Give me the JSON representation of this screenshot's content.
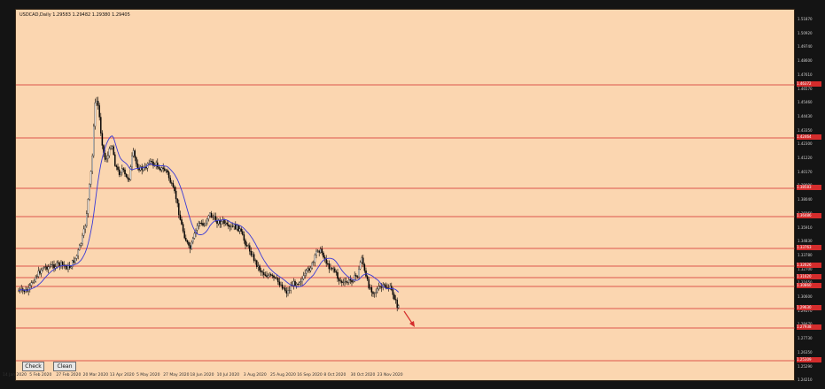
{
  "chart": {
    "title": "USDCAD,Daily  1.29583 1.29482 1.29380 1.29405",
    "buttons": {
      "check": "Check",
      "clean": "Clean"
    }
  },
  "colors": {
    "background": "#fbd6b0",
    "candles": "#000000",
    "ma": "#3a3ad6",
    "levels": "#d42c2c",
    "arrow": "#d42c2c"
  },
  "y_axis": {
    "ticks": [
      "1.51870",
      "1.50920",
      "1.49740",
      "1.48600",
      "1.47610",
      "1.46570",
      "1.45460",
      "1.44430",
      "1.43350",
      "1.42300",
      "1.41220",
      "1.40170",
      "1.39090",
      "1.38040",
      "1.36960",
      "1.35910",
      "1.34830",
      "1.33780",
      "1.32700",
      "1.31650",
      "1.30600",
      "1.29570",
      "1.28470",
      "1.27730",
      "1.26350",
      "1.25290",
      "1.24210"
    ],
    "level_badges": [
      "1.46372",
      "1.42464",
      "1.38583",
      "1.36486",
      "1.33763",
      "1.32626",
      "1.31620",
      "1.30860",
      "1.29630",
      "1.27938",
      "1.25309"
    ]
  },
  "x_axis": {
    "ticks": [
      "14 Jan 2020",
      "5 Feb 2020",
      "27 Feb 2020",
      "20 Mar 2020",
      "13 Apr 2020",
      "5 May 2020",
      "27 May 2020",
      "18 Jun 2020",
      "10 Jul 2020",
      "3 Aug 2020",
      "25 Aug 2020",
      "16 Sep 2020",
      "8 Oct 2020",
      "30 Oct 2020",
      "23 Nov 2020"
    ]
  }
}
